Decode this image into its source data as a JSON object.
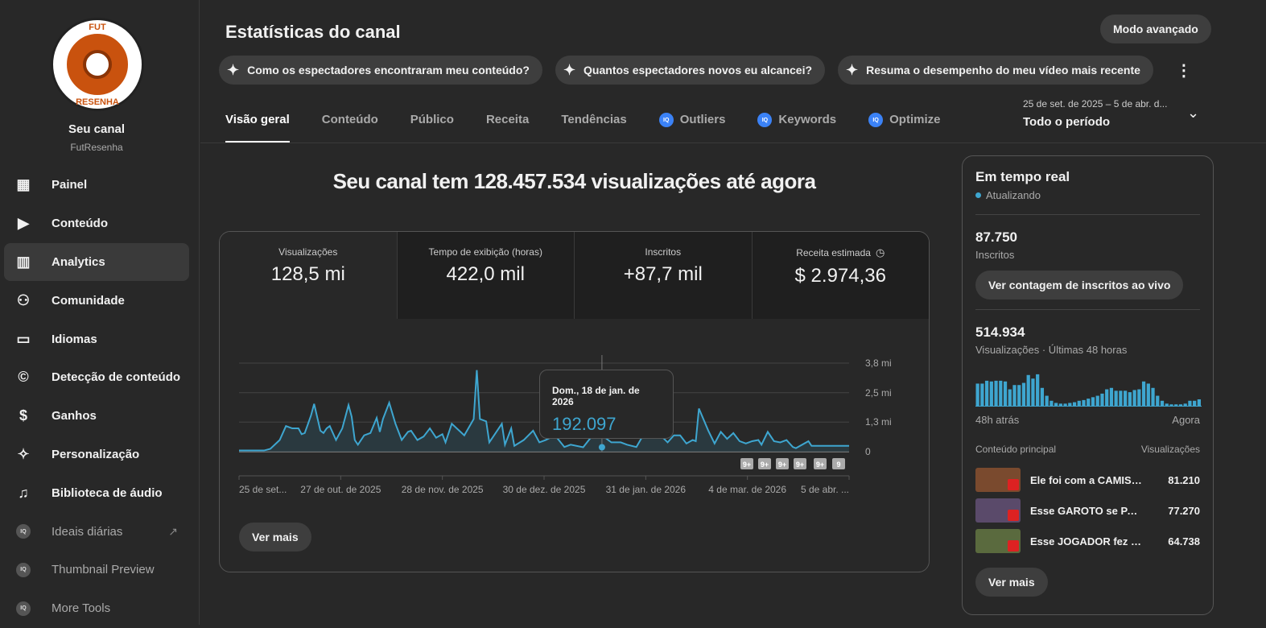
{
  "channel": {
    "logo_text_top": "FUT",
    "logo_text_bottom": "RESENHA",
    "title": "Seu canal",
    "handle": "FutResenha"
  },
  "sidebar": {
    "items": [
      {
        "label": "Painel",
        "icon": "dashboard-icon",
        "glyph": "▦"
      },
      {
        "label": "Conteúdo",
        "icon": "content-icon",
        "glyph": "▶"
      },
      {
        "label": "Analytics",
        "icon": "analytics-icon",
        "glyph": "▥",
        "active": true
      },
      {
        "label": "Comunidade",
        "icon": "community-icon",
        "glyph": "⚇"
      },
      {
        "label": "Idiomas",
        "icon": "subtitles-icon",
        "glyph": "▭"
      },
      {
        "label": "Detecção de conteúdo",
        "icon": "copyright-icon",
        "glyph": "©"
      },
      {
        "label": "Ganhos",
        "icon": "dollar-icon",
        "glyph": "$"
      },
      {
        "label": "Personalização",
        "icon": "magic-wand-icon",
        "glyph": "✧"
      },
      {
        "label": "Biblioteca de áudio",
        "icon": "audio-library-icon",
        "glyph": "♫"
      }
    ],
    "ext_items": [
      {
        "label": "Ideais diárias",
        "external": true
      },
      {
        "label": "Thumbnail Preview"
      },
      {
        "label": "More Tools"
      }
    ],
    "iq_badge": "IQ"
  },
  "header": {
    "title": "Estatísticas do canal",
    "advanced": "Modo avançado",
    "chips": [
      "Como os espectadores encontraram meu conteúdo?",
      "Quantos espectadores novos eu alcancei?",
      "Resuma o desempenho do meu vídeo mais recente"
    ]
  },
  "tabs": [
    {
      "label": "Visão geral",
      "active": true
    },
    {
      "label": "Conteúdo"
    },
    {
      "label": "Público"
    },
    {
      "label": "Receita"
    },
    {
      "label": "Tendências"
    },
    {
      "label": "Outliers",
      "iq": true
    },
    {
      "label": "Keywords",
      "iq": true
    },
    {
      "label": "Optimize",
      "iq": true
    }
  ],
  "period": {
    "range": "25 de set. de 2025 – 5 de abr. d...",
    "value": "Todo o período"
  },
  "headline": "Seu canal tem 128.457.534 visualizações até agora",
  "metrics": [
    {
      "label": "Visualizações",
      "value": "128,5 mi"
    },
    {
      "label": "Tempo de exibição (horas)",
      "value": "422,0 mil"
    },
    {
      "label": "Inscritos",
      "value": "+87,7 mil"
    },
    {
      "label": "Receita estimada",
      "value": "$ 2.974,36",
      "icon": "clock-icon"
    }
  ],
  "tooltip": {
    "date": "Dom., 18 de jan. de 2026",
    "value": "192.097"
  },
  "markers": [
    "9+",
    "9+",
    "9+",
    "9+",
    "9+",
    "9"
  ],
  "see_more": "Ver mais",
  "chart_data": {
    "type": "area",
    "ylabel": "Visualizações",
    "ylim": [
      0,
      3.8
    ],
    "yticks": [
      "0",
      "1,3 mi",
      "2,5 mi",
      "3,8 mi"
    ],
    "ytick_values": [
      0,
      1.27,
      2.53,
      3.8
    ],
    "xticks": [
      "25 de set...",
      "27 de out. de 2025",
      "28 de nov. de 2025",
      "30 de dez. de 2025",
      "31 de jan. de 2026",
      "4 de mar. de 2026",
      "5 de abr. ..."
    ],
    "x_days": [
      0,
      8,
      10,
      13,
      15,
      17,
      19,
      20,
      21,
      23,
      24,
      26,
      27,
      28,
      29,
      31,
      33,
      35,
      36,
      37,
      38,
      40,
      42,
      44,
      45,
      46,
      48,
      50,
      52,
      54,
      55,
      57,
      59,
      61,
      63,
      65,
      66,
      68,
      72,
      75,
      76,
      77,
      79,
      80,
      81,
      84,
      85,
      87,
      88,
      91,
      94,
      96,
      98,
      101,
      104,
      106,
      110,
      113,
      117,
      119,
      122,
      124,
      127,
      130,
      132,
      134,
      137,
      139,
      141,
      143,
      145,
      146,
      147,
      150,
      152,
      154,
      156,
      158,
      160,
      162,
      164,
      166,
      167,
      169,
      171,
      173,
      175,
      177,
      178,
      182,
      183,
      185,
      187,
      189,
      191,
      193,
      195
    ],
    "values": [
      0.05,
      0.05,
      0.12,
      0.5,
      1.1,
      1.0,
      1.0,
      0.75,
      0.8,
      1.55,
      2.05,
      0.9,
      0.8,
      1.0,
      1.1,
      0.5,
      1.0,
      2.0,
      1.5,
      0.5,
      0.3,
      0.7,
      0.8,
      1.45,
      0.85,
      1.4,
      2.1,
      1.2,
      0.5,
      0.85,
      0.9,
      0.5,
      0.65,
      1.0,
      0.6,
      0.75,
      0.4,
      1.2,
      0.7,
      1.4,
      3.5,
      1.4,
      1.3,
      0.4,
      0.6,
      1.2,
      0.3,
      1.0,
      0.25,
      0.5,
      0.9,
      0.4,
      0.5,
      0.7,
      0.2,
      0.3,
      0.19,
      0.7,
      0.6,
      0.4,
      0.4,
      0.3,
      0.2,
      0.9,
      1.15,
      0.8,
      0.4,
      0.7,
      0.7,
      0.35,
      0.5,
      0.45,
      1.85,
      0.9,
      0.35,
      0.85,
      0.55,
      0.8,
      0.45,
      0.35,
      0.45,
      0.5,
      0.3,
      0.85,
      0.45,
      0.4,
      0.5,
      0.2,
      0.15,
      0.45,
      0.25,
      0.25,
      0.25,
      0.25,
      0.25,
      0.25,
      0.25
    ],
    "highlight_day": 116
  },
  "realtime": {
    "title": "Em tempo real",
    "status": "Atualizando",
    "subs_value": "87.750",
    "subs_label": "Inscritos",
    "live_button": "Ver contagem de inscritos ao vivo",
    "views_value": "514.934",
    "views_label": "Visualizações · Últimas 48 horas",
    "start_label": "48h atrás",
    "end_label": "Agora",
    "bars": [
      62,
      62,
      70,
      68,
      70,
      70,
      68,
      46,
      58,
      58,
      64,
      86,
      76,
      88,
      50,
      28,
      14,
      8,
      6,
      6,
      8,
      10,
      14,
      16,
      20,
      24,
      28,
      34,
      46,
      50,
      42,
      42,
      42,
      38,
      44,
      46,
      68,
      62,
      50,
      28,
      14,
      6,
      4,
      4,
      4,
      6,
      14,
      14,
      18
    ],
    "top_header": "Conteúdo principal",
    "top_header_right": "Visualizações",
    "top": [
      {
        "title": "Ele foi com a CAMISA d...",
        "views": "81.210",
        "color": "#7a4a2e"
      },
      {
        "title": "Esse GAROTO se PARE...",
        "views": "77.270",
        "color": "#5a4a6a"
      },
      {
        "title": "Esse JOGADOR fez o C...",
        "views": "64.738",
        "color": "#5a6a3e"
      }
    ],
    "see_more": "Ver mais"
  },
  "colors": {
    "accent": "#3ea6d0"
  }
}
